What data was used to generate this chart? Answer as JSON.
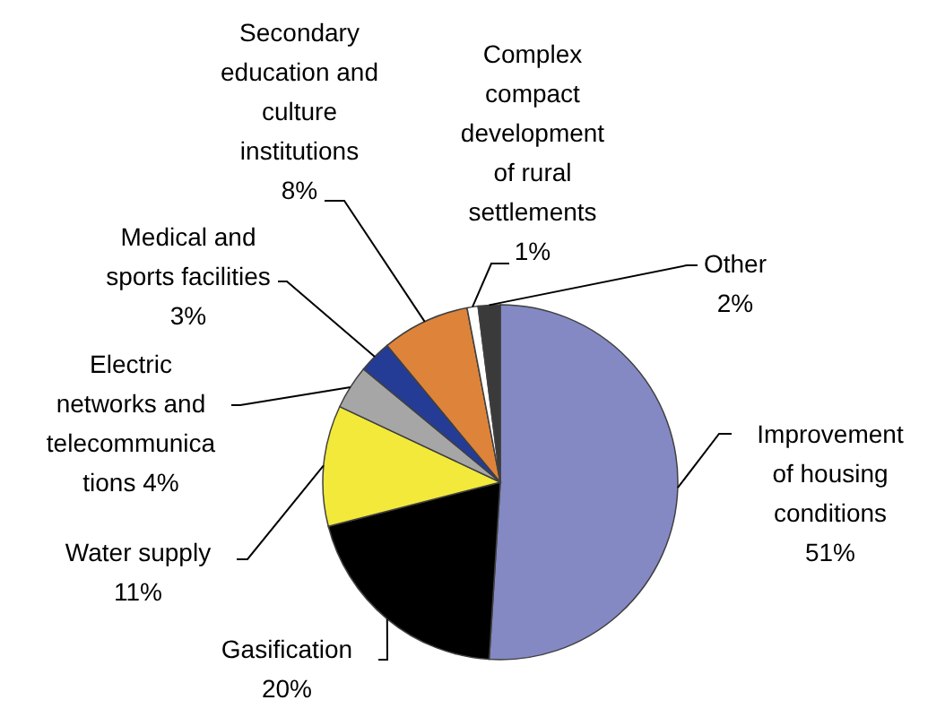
{
  "chart_data": {
    "type": "pie",
    "categories": [
      "Improvement of housing conditions",
      "Gasification",
      "Water supply",
      "Electric networks and telecommunica tions",
      "Medical and sports facilities",
      "Secondary education and culture institutions",
      "Complex compact development of rural settlements",
      "Other"
    ],
    "values": [
      51,
      20,
      11,
      4,
      3,
      8,
      1,
      2
    ],
    "colors": [
      "#8489c4",
      "#000000",
      "#f2e93a",
      "#a6a6a6",
      "#253c96",
      "#dd843a",
      "#ffffff",
      "#3a3a3a"
    ],
    "value_labels": [
      "51%",
      "20%",
      "11%",
      "4%",
      "3%",
      "8%",
      "1%",
      "2%"
    ]
  }
}
